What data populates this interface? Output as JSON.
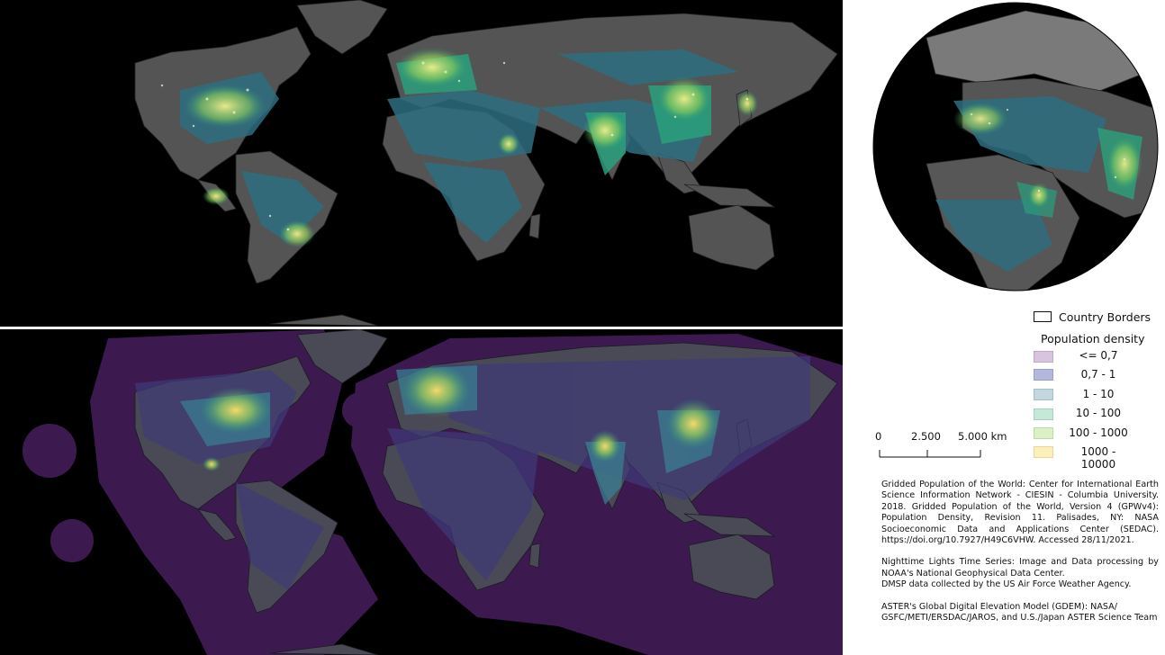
{
  "legend": {
    "borders_label": "Country Borders",
    "title": "Population density",
    "classes": [
      {
        "label": "<= 0,7",
        "color": "#d8c4de",
        "edge": "#bcaac6"
      },
      {
        "label": "0,7 - 1",
        "color": "#b4b7dc",
        "edge": "#9c9fc8"
      },
      {
        "label": "1 - 10",
        "color": "#c4d6e0",
        "edge": "#a6bcc8"
      },
      {
        "label": "10 - 100",
        "color": "#c6e8d8",
        "edge": "#a6d0bc"
      },
      {
        "label": "100 - 1000",
        "color": "#dcf0c6",
        "edge": "#bed8a6"
      },
      {
        "label": "1000 - 10000",
        "color": "#fbf0b8",
        "edge": "#e6d79a"
      }
    ]
  },
  "scale": {
    "ticks": [
      "0",
      "2.500",
      "5.000 km"
    ]
  },
  "credits": {
    "gpw": "Gridded Population of the World: Center for International Earth Science Information Network - CIESIN - Columbia University. 2018. Gridded Population of the World, Version 4 (GPWv4): Population Density, Revision 11. Palisades, NY: NASA Socioeconomic Data and Applications Center (SEDAC). https://doi.org/10.7927/H49C6VHW. Accessed 28/11/2021.",
    "nighttime_1": "Nighttime Lights Time Series: Image and Data processing by NOAA's National Geophysical Data Center.",
    "nighttime_2": "DMSP data collected by the US Air Force Weather Agency.",
    "aster": "ASTER's Global Digital Elevation Model (GDEM): NASA/ GSFC/METI/ERSDAC/JAROS, and U.S./Japan ASTER Science Team"
  },
  "colors": {
    "ocean": "#000000",
    "land_grey": "#555555",
    "ice": "#7a7a7a",
    "pop_low": "#2e6e80",
    "pop_mid": "#2aa07c",
    "pop_high": "#b8d84a",
    "buffer": "#3c1a50",
    "glow_hot": "#ffe066"
  },
  "icons": {
    "map_top": "nighttime-lights-world-map",
    "map_bottom": "population-density-world-map",
    "globe": "orthographic-globe-map"
  }
}
